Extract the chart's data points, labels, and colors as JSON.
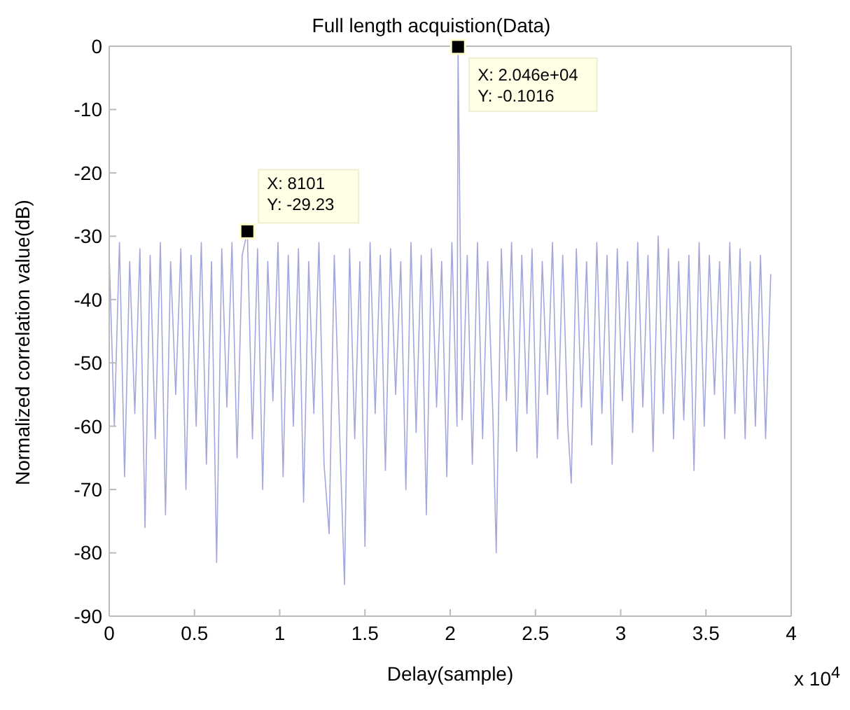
{
  "chart_data": {
    "type": "line",
    "title": "Full length acquistion(Data)",
    "xlabel": "Delay(sample)",
    "ylabel": "Normalized correlation value(dB)",
    "xlim": [
      0,
      4
    ],
    "ylim": [
      -90,
      0
    ],
    "xticks": [
      0,
      0.5,
      1,
      1.5,
      2,
      2.5,
      3,
      3.5,
      4
    ],
    "yticks": [
      -90,
      -80,
      -70,
      -60,
      -50,
      -40,
      -30,
      -20,
      -10,
      0
    ],
    "series": [
      {
        "color": "#a3a7dc",
        "x": [
          0,
          0.03,
          0.06,
          0.09,
          0.12,
          0.15,
          0.18,
          0.21,
          0.24,
          0.27,
          0.3,
          0.33,
          0.36,
          0.39,
          0.42,
          0.45,
          0.48,
          0.51,
          0.54,
          0.57,
          0.6,
          0.63,
          0.66,
          0.69,
          0.72,
          0.75,
          0.78,
          0.8101,
          0.84,
          0.87,
          0.9,
          0.93,
          0.96,
          0.99,
          1.02,
          1.05,
          1.08,
          1.11,
          1.14,
          1.17,
          1.2,
          1.23,
          1.26,
          1.29,
          1.32,
          1.35,
          1.38,
          1.41,
          1.44,
          1.47,
          1.5,
          1.53,
          1.56,
          1.59,
          1.62,
          1.65,
          1.68,
          1.71,
          1.74,
          1.77,
          1.8,
          1.83,
          1.86,
          1.89,
          1.92,
          1.95,
          1.98,
          2.01,
          2.04,
          2.046,
          2.07,
          2.1,
          2.13,
          2.16,
          2.19,
          2.22,
          2.25,
          2.27,
          2.3,
          2.33,
          2.36,
          2.39,
          2.42,
          2.45,
          2.48,
          2.51,
          2.54,
          2.57,
          2.6,
          2.63,
          2.66,
          2.69,
          2.71,
          2.74,
          2.77,
          2.8,
          2.83,
          2.86,
          2.89,
          2.92,
          2.95,
          2.98,
          3.01,
          3.04,
          3.07,
          3.1,
          3.13,
          3.16,
          3.19,
          3.22,
          3.25,
          3.28,
          3.31,
          3.34,
          3.37,
          3.4,
          3.43,
          3.46,
          3.49,
          3.52,
          3.55,
          3.58,
          3.61,
          3.64,
          3.67,
          3.7,
          3.73,
          3.76,
          3.79,
          3.82,
          3.85,
          3.88
        ],
        "values": [
          -33,
          -60,
          -31,
          -68,
          -34,
          -58,
          -32,
          -76,
          -33,
          -62,
          -31,
          -74,
          -34,
          -55,
          -32,
          -70,
          -33,
          -60,
          -31,
          -66,
          -34,
          -81.5,
          -32,
          -57,
          -31,
          -65,
          -33,
          -29.23,
          -62,
          -32,
          -70,
          -34,
          -56,
          -31,
          -68,
          -33,
          -60,
          -32,
          -72,
          -34,
          -58,
          -31,
          -66,
          -77,
          -33,
          -60,
          -85,
          -32,
          -62,
          -34,
          -79,
          -31,
          -58,
          -33,
          -67,
          -32,
          -55,
          -34,
          -70,
          -31,
          -61,
          -33,
          -74,
          -32,
          -57,
          -34,
          -68,
          -31,
          -60,
          -0.1016,
          -59,
          -33,
          -66,
          -31,
          -62,
          -34,
          -58,
          -80,
          -32,
          -56,
          -31,
          -64,
          -33,
          -58,
          -32,
          -65,
          -34,
          -55,
          -31,
          -62,
          -33,
          -60,
          -69,
          -32,
          -57,
          -34,
          -63,
          -31,
          -58,
          -33,
          -66,
          -32,
          -56,
          -34,
          -61,
          -31,
          -57,
          -33,
          -64,
          -30,
          -58,
          -32,
          -62,
          -34,
          -59,
          -33,
          -67,
          -31,
          -60,
          -33,
          -55,
          -34,
          -62,
          -31,
          -58,
          -32,
          -62,
          -34,
          -60,
          -33,
          -62,
          -36
        ]
      }
    ],
    "annotations": [
      {
        "text": "X: 8101\nY: -29.23",
        "x": 0.8101,
        "y": -29.23
      },
      {
        "text": "X: 2.046e+04\nY: -0.1016",
        "x": 2.046,
        "y": -0.1016
      },
      "x 10$^{4}$"
    ]
  }
}
